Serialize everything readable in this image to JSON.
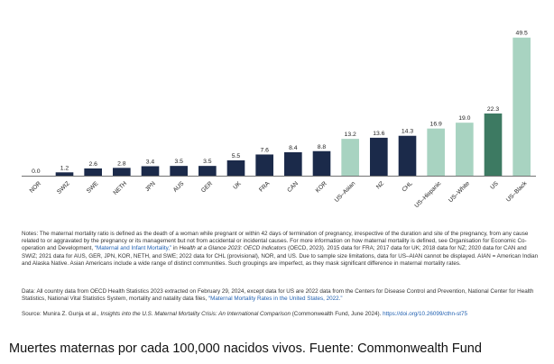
{
  "chart_data": {
    "type": "bar",
    "title": "",
    "xlabel": "",
    "ylabel": "",
    "ylim": [
      0,
      52
    ],
    "grid": false,
    "categories": [
      "NOR",
      "SWIZ",
      "SWE",
      "NETH",
      "JPN",
      "AUS",
      "GER",
      "UK",
      "FRA",
      "CAN",
      "KOR",
      "US–Asian",
      "NZ",
      "CHL",
      "US–Hispanic",
      "US–White",
      "US",
      "US–Black"
    ],
    "values": [
      0.0,
      1.2,
      2.6,
      2.8,
      3.4,
      3.5,
      3.5,
      5.5,
      7.6,
      8.4,
      8.8,
      13.2,
      13.6,
      14.3,
      16.9,
      19.0,
      22.3,
      49.5
    ],
    "value_labels": [
      "0.0",
      "1.2",
      "2.6",
      "2.8",
      "3.4",
      "3.5",
      "3.5",
      "5.5",
      "7.6",
      "8.4",
      "8.8",
      "13.2",
      "13.6",
      "14.3",
      "16.9",
      "19.0",
      "22.3",
      "49.5"
    ],
    "bar_colors": [
      "#1b2a4a",
      "#1b2a4a",
      "#1b2a4a",
      "#1b2a4a",
      "#1b2a4a",
      "#1b2a4a",
      "#1b2a4a",
      "#1b2a4a",
      "#1b2a4a",
      "#1b2a4a",
      "#1b2a4a",
      "#a8d3c1",
      "#1b2a4a",
      "#1b2a4a",
      "#a8d3c1",
      "#a8d3c1",
      "#3d7a62",
      "#a8d3c1"
    ]
  },
  "notes": {
    "part1": "Notes: The maternal mortality ratio is defined as the death of a woman while pregnant or within 42 days of termination of pregnancy, irrespective of the duration and site of the pregnancy, from any cause related to or aggravated by the pregnancy or its management but not from accidental or incidental causes. For more information on how maternal mortality is defined, see Organisation for Economic Co-operation and Development, ",
    "link1": "“Maternal and Infant Mortality,”",
    "part2": " in ",
    "italic1": "Health at a Glance 2023: OECD Indicators",
    "part3": " (OECD, 2023). 2015 data for FRA; 2017 data for UK; 2018 data for NZ; 2020 data for CAN and SWIZ; 2021 data for AUS, GER, JPN, KOR, NETH, and SWE; 2022 data for CHL (provisional), NOR, and US. Due to sample size limitations, data for US–AIAN cannot be displayed. AIAN = American Indian and Alaska Native. Asian Americans include a wide range of distinct communities. Such groupings are imperfect, as they mask significant difference in maternal mortality rates."
  },
  "data_note": {
    "part1": "Data: All country data from OECD Health Statistics 2023 extracted on February 29, 2024, except data for US are 2022 data from the Centers for Disease Control and Prevention, National Center for Health Statistics, National Vital Statistics System, mortality and natality data files, ",
    "link": "“Maternal Mortality Rates in the United States, 2022.”"
  },
  "source": {
    "part1": "Source: Munira Z. Gunja et al., ",
    "italic": "Insights into the U.S. Maternal Mortality Crisis: An International Comparison",
    "part2": " (Commonwealth Fund, June 2024). ",
    "link": "https://doi.org/10.26099/cthn-st75"
  },
  "caption": "Muertes maternas por cada 100,000 nacidos vivos. Fuente: Commonwealth Fund"
}
